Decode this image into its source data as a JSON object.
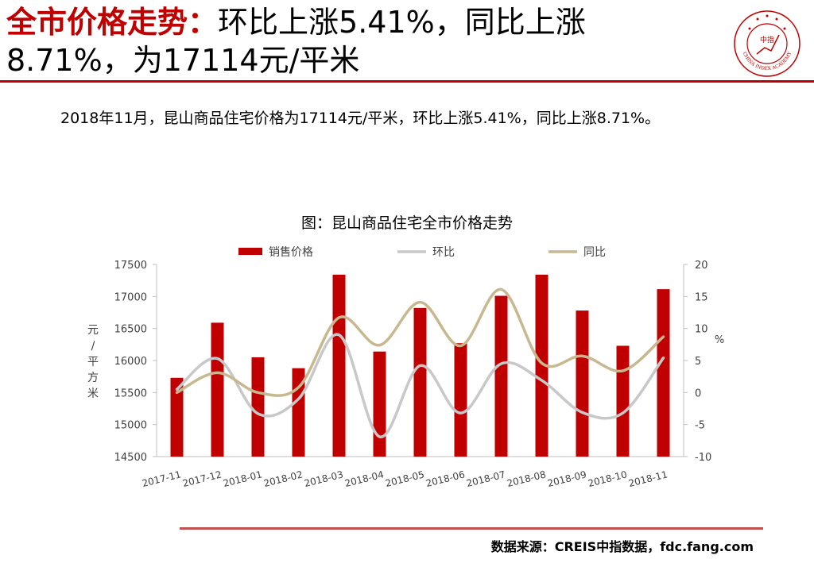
{
  "header": {
    "title_part1": "全市价格走势：",
    "title_part2": "环比上涨5.41%，同比上涨8.71%，为17114元/平米"
  },
  "logo": {
    "name": "CHINA INDEX ACADEMY",
    "center_text": "中指"
  },
  "summary": "2018年11月，昆山商品住宅价格为17114元/平米，环比上涨5.41%，同比上涨8.71%。",
  "chart_data": {
    "type": "bar",
    "title": "图：昆山商品住宅全市价格走势",
    "categories": [
      "2017-11",
      "2017-12",
      "2018-01",
      "2018-02",
      "2018-03",
      "2018-04",
      "2018-05",
      "2018-06",
      "2018-07",
      "2018-08",
      "2018-09",
      "2018-10",
      "2018-11"
    ],
    "series": [
      {
        "name": "销售价格",
        "kind": "bar",
        "axis": "left",
        "color": "#c00000",
        "values": [
          15730,
          16590,
          16050,
          15880,
          17340,
          16140,
          16820,
          16270,
          17010,
          17340,
          16780,
          16230,
          17114
        ]
      },
      {
        "name": "环比",
        "kind": "line",
        "axis": "right",
        "color": "#c8c8c8",
        "values": [
          0.5,
          5.3,
          -3.3,
          -1.0,
          9.0,
          -6.9,
          4.2,
          -3.2,
          4.5,
          1.9,
          -3.1,
          -3.2,
          5.41
        ]
      },
      {
        "name": "同比",
        "kind": "line",
        "axis": "right",
        "color": "#c7b88f",
        "values": [
          0.0,
          3.1,
          0.0,
          0.8,
          11.7,
          7.4,
          14.1,
          7.3,
          16.1,
          4.6,
          5.7,
          3.4,
          8.71
        ]
      }
    ],
    "left_axis": {
      "label": "元/平方米",
      "min": 14500,
      "max": 17500,
      "step": 500,
      "ticks": [
        "14500",
        "15000",
        "15500",
        "16000",
        "16500",
        "17000",
        "17500"
      ]
    },
    "right_axis": {
      "label": "%",
      "min": -10,
      "max": 20,
      "step": 5,
      "ticks": [
        "-10",
        "-5",
        "0",
        "5",
        "10",
        "15",
        "20"
      ]
    },
    "legend_position": "top-center",
    "grid": false
  },
  "source": "数据来源：CREIS中指数据，fdc.fang.com"
}
